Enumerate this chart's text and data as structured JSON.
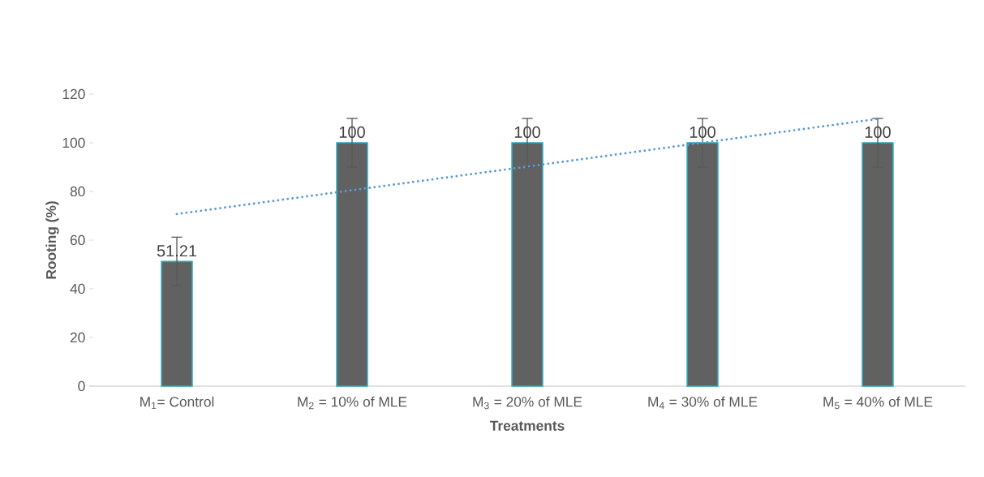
{
  "chart_data": {
    "type": "bar",
    "xlabel": "Treatments",
    "ylabel": "Rooting (%)",
    "categories": [
      "M$_{1}$= Control",
      "M$_{2}$ = 10% of MLE",
      "M$_{3}$ = 20% of MLE",
      "M$_{4}$ = 30% of MLE",
      "M$_{5}$ = 40% of MLE"
    ],
    "series": [
      {
        "color": "#2aa6b8",
        "values": [
          51.21,
          100,
          100,
          100,
          100
        ],
        "errors": [
          10,
          10,
          10,
          10,
          10
        ],
        "value_labels": [
          "51.21",
          "100",
          "100",
          "100",
          "100"
        ]
      },
      {
        "type": "line",
        "color": "#5b9bd5",
        "line_style": "dotted",
        "marker": "none",
        "values": [
          70.7,
          80.5,
          90.2,
          100,
          109.8
        ]
      }
    ],
    "ylim": [
      0,
      120
    ],
    "yticks": [
      0,
      20,
      40,
      60,
      80,
      100,
      120
    ],
    "grid": false
  }
}
